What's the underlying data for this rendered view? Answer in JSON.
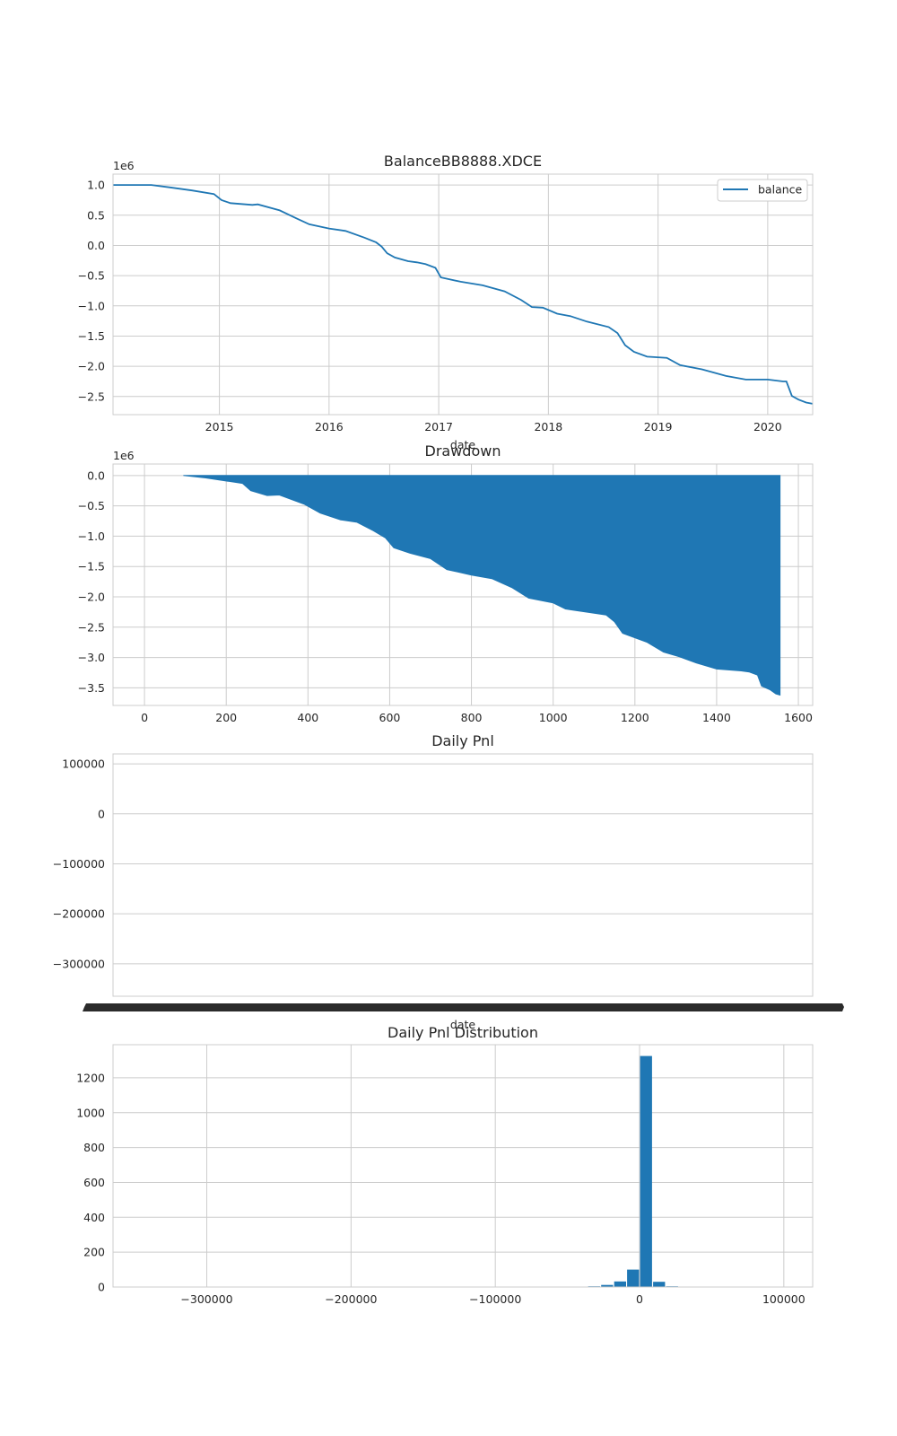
{
  "chart_data": [
    {
      "type": "line",
      "title": "BalanceBB8888.XDCE",
      "xlabel": "date",
      "ylabel": "",
      "y_offset_label": "1e6",
      "xlim": [
        2014.03,
        2020.41
      ],
      "ylim": [
        -2.8,
        1.18
      ],
      "xticks": [
        2015,
        2016,
        2017,
        2018,
        2019,
        2020
      ],
      "xtick_labels": [
        "2015",
        "2016",
        "2017",
        "2018",
        "2019",
        "2020"
      ],
      "yticks": [
        1.0,
        0.5,
        0.0,
        -0.5,
        -1.0,
        -1.5,
        -2.0,
        -2.5
      ],
      "ytick_labels": [
        "1.0",
        "0.5",
        "0.0",
        "−0.5",
        "−1.0",
        "−1.5",
        "−2.0",
        "−2.5"
      ],
      "grid": true,
      "legend_position": "top-right",
      "series": [
        {
          "name": "balance",
          "color": "#1f77b4",
          "x": [
            2014.03,
            2014.38,
            2014.55,
            2014.75,
            2014.95,
            2015.02,
            2015.1,
            2015.3,
            2015.35,
            2015.55,
            2015.7,
            2015.82,
            2016.0,
            2016.15,
            2016.32,
            2016.43,
            2016.48,
            2016.53,
            2016.6,
            2016.72,
            2016.8,
            2016.88,
            2016.97,
            2017.02,
            2017.2,
            2017.4,
            2017.6,
            2017.75,
            2017.85,
            2017.95,
            2018.08,
            2018.2,
            2018.35,
            2018.55,
            2018.63,
            2018.7,
            2018.78,
            2018.9,
            2019.08,
            2019.2,
            2019.4,
            2019.62,
            2019.8,
            2020.0,
            2020.14,
            2020.17,
            2020.22,
            2020.28,
            2020.35,
            2020.41
          ],
          "y": [
            1.0,
            1.0,
            0.96,
            0.91,
            0.85,
            0.75,
            0.7,
            0.67,
            0.68,
            0.58,
            0.45,
            0.35,
            0.28,
            0.24,
            0.13,
            0.05,
            -0.02,
            -0.13,
            -0.2,
            -0.26,
            -0.28,
            -0.31,
            -0.37,
            -0.53,
            -0.6,
            -0.66,
            -0.76,
            -0.9,
            -1.02,
            -1.03,
            -1.13,
            -1.17,
            -1.26,
            -1.35,
            -1.45,
            -1.65,
            -1.76,
            -1.84,
            -1.86,
            -1.98,
            -2.05,
            -2.16,
            -2.22,
            -2.22,
            -2.25,
            -2.25,
            -2.49,
            -2.55,
            -2.6,
            -2.62
          ]
        }
      ]
    },
    {
      "type": "area",
      "title": "Drawdown",
      "xlabel": "",
      "ylabel": "",
      "y_offset_label": "1e6",
      "xlim": [
        -77,
        1635
      ],
      "ylim": [
        -3.79,
        0.19
      ],
      "xticks": [
        0,
        200,
        400,
        600,
        800,
        1000,
        1200,
        1400,
        1600
      ],
      "xtick_labels": [
        "0",
        "200",
        "400",
        "600",
        "800",
        "1000",
        "1200",
        "1400",
        "1600"
      ],
      "yticks": [
        0.0,
        -0.5,
        -1.0,
        -1.5,
        -2.0,
        -2.5,
        -3.0,
        -3.5
      ],
      "ytick_labels": [
        "0.0",
        "−0.5",
        "−1.0",
        "−1.5",
        "−2.0",
        "−2.5",
        "−3.0",
        "−3.5"
      ],
      "grid": true,
      "series": [
        {
          "color": "#1f77b4",
          "x": [
            95,
            150,
            240,
            260,
            300,
            330,
            390,
            430,
            480,
            520,
            560,
            590,
            610,
            650,
            700,
            740,
            800,
            850,
            900,
            940,
            1000,
            1030,
            1080,
            1130,
            1150,
            1170,
            1230,
            1270,
            1310,
            1350,
            1400,
            1460,
            1480,
            1500,
            1510,
            1530,
            1545,
            1555
          ],
          "y": [
            0.0,
            -0.04,
            -0.13,
            -0.25,
            -0.33,
            -0.32,
            -0.47,
            -0.62,
            -0.73,
            -0.77,
            -0.91,
            -1.03,
            -1.19,
            -1.28,
            -1.37,
            -1.55,
            -1.64,
            -1.7,
            -1.85,
            -2.02,
            -2.1,
            -2.2,
            -2.25,
            -2.3,
            -2.41,
            -2.6,
            -2.75,
            -2.91,
            -2.99,
            -3.09,
            -3.19,
            -3.22,
            -3.24,
            -3.29,
            -3.47,
            -3.53,
            -3.6,
            -3.62
          ]
        }
      ]
    },
    {
      "type": "bar",
      "title": "Daily Pnl",
      "xlabel": "date",
      "ylabel": "",
      "ylim": [
        -365000,
        120000
      ],
      "yticks": [
        100000,
        0,
        -100000,
        -200000,
        -300000
      ],
      "ytick_labels": [
        "100000",
        "0",
        "−100000",
        "−200000",
        "−300000"
      ],
      "x_tick_count": 1550,
      "x_tick_labels_rendered_as_overlapping_black_band": true,
      "grid": true
    },
    {
      "type": "bar",
      "title": "Daily Pnl Distribution",
      "xlabel": "",
      "ylabel": "",
      "xlim": [
        -365000,
        120000
      ],
      "ylim": [
        0,
        1390
      ],
      "xticks": [
        -300000,
        -200000,
        -100000,
        0,
        100000
      ],
      "xtick_labels": [
        "−300000",
        "−200000",
        "−100000",
        "0",
        "100000"
      ],
      "yticks": [
        0,
        200,
        400,
        600,
        800,
        1000,
        1200
      ],
      "ytick_labels": [
        "0",
        "200",
        "400",
        "600",
        "800",
        "1000",
        "1200"
      ],
      "grid": true,
      "bin_width": 9000,
      "bin_starts": [
        -45000,
        -36000,
        -27000,
        -18000,
        -9000,
        0,
        9000,
        18000
      ],
      "values": [
        1,
        4,
        12,
        32,
        100,
        1325,
        30,
        4
      ],
      "color": "#1f77b4"
    }
  ]
}
